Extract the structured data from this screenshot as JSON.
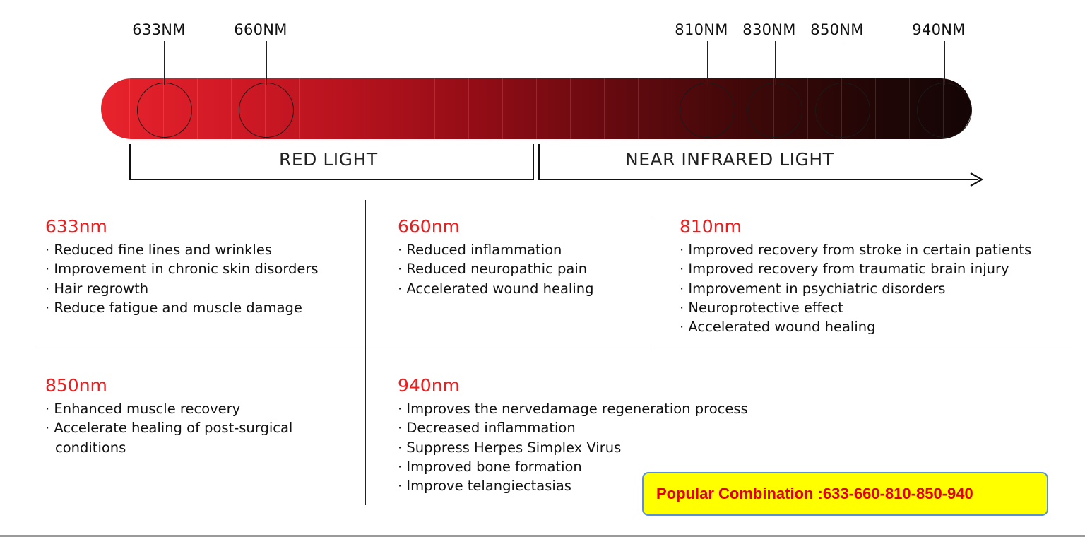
{
  "wavelength_labels": [
    "633NM",
    "660NM",
    "810NM",
    "830NM",
    "850NM",
    "940NM"
  ],
  "bands": {
    "red": "RED LIGHT",
    "nir": "NEAR INFRARED LIGHT"
  },
  "blocks": [
    {
      "title": "633nm",
      "items": [
        "· Reduced fine lines and wrinkles",
        "· Improvement in chronic skin disorders",
        "· Hair regrowth",
        "· Reduce fatigue and muscle damage"
      ]
    },
    {
      "title": "660nm",
      "items": [
        "· Reduced inflammation",
        "· Reduced neuropathic pain",
        "· Accelerated wound healing"
      ]
    },
    {
      "title": "810nm",
      "items": [
        "· Improved recovery from stroke in certain patients",
        "· Improved recovery from traumatic brain injury",
        "· Improvement in psychiatric disorders",
        "· Neuroprotective effect",
        "· Accelerated wound healing"
      ]
    },
    {
      "title": "850nm",
      "items": [
        "· Enhanced muscle recovery",
        "· Accelerate healing of post-surgical conditions"
      ]
    },
    {
      "title": "940nm",
      "items": [
        "· Improves the nervedamage regeneration process",
        "· Decreased inflammation",
        "· Suppress Herpes Simplex Virus",
        "· Improved bone formation",
        "· Improve telangiectasias"
      ]
    }
  ],
  "combination": "Popular Combination :633-660-810-850-940",
  "colors": {
    "accent_red": "#ee1c1c",
    "combo_bg": "#ffff00",
    "combo_border": "#5b8fd6",
    "combo_text": "#e00000"
  }
}
